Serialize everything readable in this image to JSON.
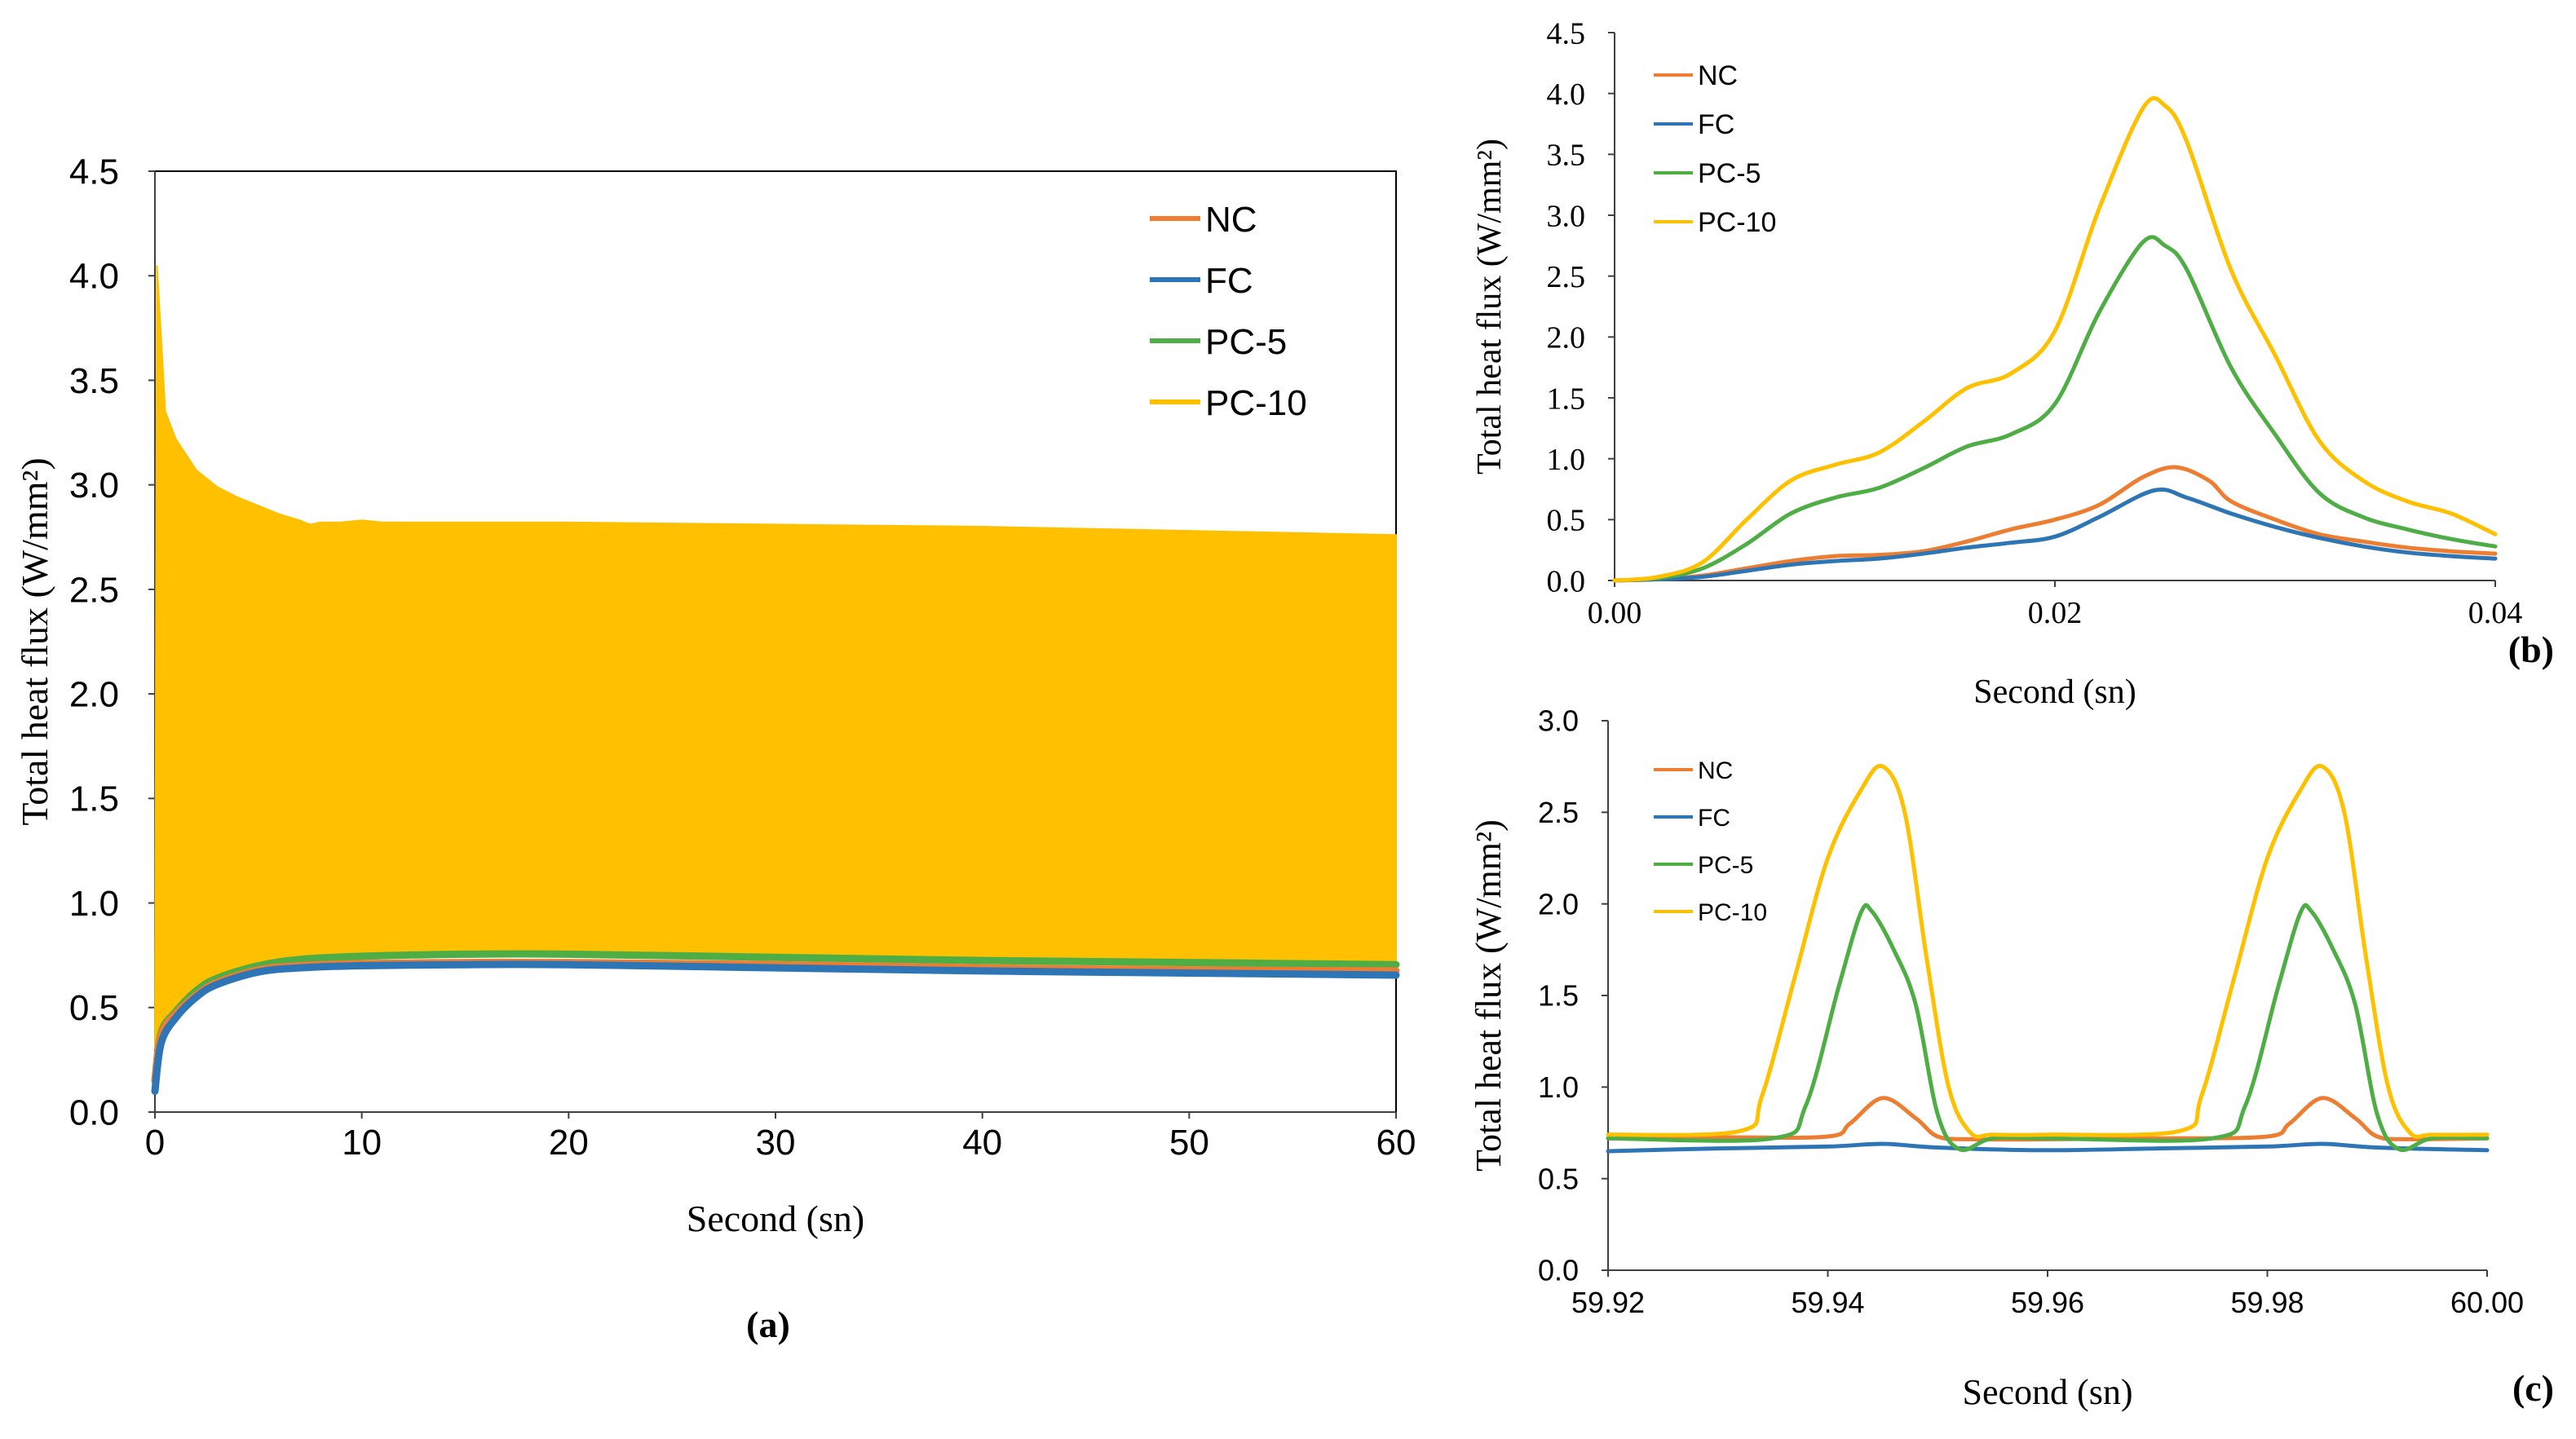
{
  "colors": {
    "NC": "#ED7D31",
    "FC": "#2E75B6",
    "PC-5": "#4EAE45",
    "PC-10": "#FFC000",
    "axis": "#404040"
  },
  "panel_labels": {
    "a": "(a)",
    "b": "(b)",
    "c": "(c)"
  },
  "chart_data": [
    {
      "id": "a",
      "type": "line",
      "title": "",
      "xlabel": "Second (sn)",
      "ylabel": "Total heat flux (W/mm²)",
      "xlim": [
        0,
        60
      ],
      "ylim": [
        0,
        4.5
      ],
      "xticks": [
        0,
        10,
        20,
        30,
        40,
        50,
        60
      ],
      "xtick_labels": [
        "0",
        "10",
        "20",
        "30",
        "40",
        "50",
        "60"
      ],
      "yticks": [
        0,
        0.5,
        1,
        1.5,
        2,
        2.5,
        3,
        3.5,
        4,
        4.5
      ],
      "ytick_labels": [
        "0.0",
        "0.5",
        "1.0",
        "1.5",
        "2.0",
        "2.5",
        "3.0",
        "3.5",
        "4.0",
        "4.5"
      ],
      "legend": [
        "NC",
        "FC",
        "PC-5",
        "PC-10"
      ],
      "legend_position": "top-right",
      "series": [
        {
          "name": "PC-10",
          "kind": "envelope",
          "upper": {
            "x": [
              0,
              0.1,
              0.5,
              1,
              2,
              3,
              4,
              5,
              6,
              7,
              7.5,
              8,
              9,
              10,
              11,
              12,
              20,
              30,
              40,
              50,
              60
            ],
            "y": [
              0.3,
              4.05,
              3.35,
              3.22,
              3.07,
              2.99,
              2.94,
              2.9,
              2.86,
              2.83,
              2.81,
              2.82,
              2.82,
              2.83,
              2.82,
              2.82,
              2.82,
              2.81,
              2.8,
              2.78,
              2.76
            ]
          },
          "lower": {
            "x": [
              0,
              0.3,
              1,
              2,
              3,
              5,
              7,
              10,
              15,
              20,
              30,
              40,
              50,
              60
            ],
            "y": [
              0.3,
              0.42,
              0.5,
              0.6,
              0.66,
              0.71,
              0.73,
              0.74,
              0.75,
              0.75,
              0.74,
              0.73,
              0.72,
              0.71
            ]
          }
        },
        {
          "name": "PC-5",
          "x": [
            0,
            0.3,
            1,
            2,
            3,
            5,
            7,
            10,
            15,
            20,
            30,
            40,
            50,
            60
          ],
          "y": [
            0.15,
            0.38,
            0.48,
            0.58,
            0.64,
            0.7,
            0.73,
            0.745,
            0.755,
            0.755,
            0.74,
            0.725,
            0.715,
            0.705
          ]
        },
        {
          "name": "NC",
          "x": [
            0,
            0.3,
            1,
            2,
            3,
            5,
            7,
            10,
            15,
            20,
            30,
            40,
            50,
            60
          ],
          "y": [
            0.15,
            0.37,
            0.47,
            0.56,
            0.62,
            0.68,
            0.7,
            0.71,
            0.715,
            0.715,
            0.705,
            0.69,
            0.68,
            0.675
          ]
        },
        {
          "name": "FC",
          "x": [
            0,
            0.3,
            1,
            2,
            3,
            5,
            7,
            10,
            15,
            20,
            30,
            40,
            50,
            60
          ],
          "y": [
            0.1,
            0.33,
            0.45,
            0.55,
            0.61,
            0.67,
            0.69,
            0.7,
            0.705,
            0.705,
            0.69,
            0.675,
            0.665,
            0.655
          ]
        }
      ]
    },
    {
      "id": "b",
      "type": "line",
      "title": "",
      "xlabel": "Second (sn)",
      "ylabel": "Total heat flux (W/mm²)",
      "xlim": [
        0,
        0.04
      ],
      "ylim": [
        0,
        4.5
      ],
      "xticks": [
        0,
        0.02,
        0.04
      ],
      "xtick_labels": [
        "0.00",
        "0.02",
        "0.04"
      ],
      "yticks": [
        0,
        0.5,
        1,
        1.5,
        2,
        2.5,
        3,
        3.5,
        4,
        4.5
      ],
      "ytick_labels": [
        "0.0",
        "0.5",
        "1.0",
        "1.5",
        "2.0",
        "2.5",
        "3.0",
        "3.5",
        "4.0",
        "4.5"
      ],
      "legend": [
        "NC",
        "FC",
        "PC-5",
        "PC-10"
      ],
      "legend_position": "top-left",
      "series": [
        {
          "name": "NC",
          "x": [
            0,
            0.002,
            0.004,
            0.006,
            0.008,
            0.01,
            0.012,
            0.014,
            0.016,
            0.018,
            0.02,
            0.022,
            0.024,
            0.0255,
            0.027,
            0.028,
            0.03,
            0.032,
            0.034,
            0.036,
            0.038,
            0.04
          ],
          "y": [
            0,
            0.01,
            0.04,
            0.1,
            0.16,
            0.2,
            0.21,
            0.24,
            0.32,
            0.42,
            0.5,
            0.62,
            0.85,
            0.93,
            0.82,
            0.65,
            0.5,
            0.38,
            0.32,
            0.27,
            0.24,
            0.22
          ]
        },
        {
          "name": "FC",
          "x": [
            0,
            0.002,
            0.004,
            0.006,
            0.008,
            0.01,
            0.012,
            0.014,
            0.016,
            0.018,
            0.02,
            0.022,
            0.0245,
            0.026,
            0.028,
            0.03,
            0.032,
            0.034,
            0.036,
            0.038,
            0.04
          ],
          "y": [
            0,
            0.01,
            0.03,
            0.08,
            0.13,
            0.16,
            0.18,
            0.22,
            0.27,
            0.31,
            0.36,
            0.52,
            0.74,
            0.68,
            0.55,
            0.44,
            0.35,
            0.28,
            0.23,
            0.2,
            0.18
          ]
        },
        {
          "name": "PC-5",
          "x": [
            0,
            0.002,
            0.004,
            0.006,
            0.008,
            0.01,
            0.012,
            0.014,
            0.016,
            0.018,
            0.02,
            0.022,
            0.024,
            0.025,
            0.026,
            0.028,
            0.03,
            0.032,
            0.034,
            0.036,
            0.038,
            0.04
          ],
          "y": [
            0,
            0.02,
            0.1,
            0.3,
            0.55,
            0.68,
            0.76,
            0.92,
            1.1,
            1.2,
            1.45,
            2.2,
            2.78,
            2.75,
            2.55,
            1.75,
            1.2,
            0.72,
            0.52,
            0.42,
            0.34,
            0.28
          ]
        },
        {
          "name": "PC-10",
          "x": [
            0,
            0.002,
            0.004,
            0.006,
            0.008,
            0.01,
            0.012,
            0.014,
            0.016,
            0.018,
            0.02,
            0.022,
            0.024,
            0.025,
            0.026,
            0.028,
            0.03,
            0.032,
            0.034,
            0.036,
            0.038,
            0.04
          ],
          "y": [
            0,
            0.03,
            0.15,
            0.5,
            0.82,
            0.95,
            1.05,
            1.3,
            1.58,
            1.7,
            2.05,
            3.05,
            3.88,
            3.9,
            3.6,
            2.55,
            1.85,
            1.15,
            0.82,
            0.65,
            0.55,
            0.38
          ]
        }
      ]
    },
    {
      "id": "c",
      "type": "line",
      "title": "",
      "xlabel": "Second (sn)",
      "ylabel": "Total heat flux (W/mm²)",
      "xlim": [
        59.92,
        60.0
      ],
      "ylim": [
        0,
        3
      ],
      "xticks": [
        59.92,
        59.94,
        59.96,
        59.98,
        60.0
      ],
      "xtick_labels": [
        "59.92",
        "59.94",
        "59.96",
        "59.98",
        "60.00"
      ],
      "yticks": [
        0,
        0.5,
        1,
        1.5,
        2,
        2.5,
        3
      ],
      "ytick_labels": [
        "0.0",
        "0.5",
        "1.0",
        "1.5",
        "2.0",
        "2.5",
        "3.0"
      ],
      "legend": [
        "NC",
        "FC",
        "PC-5",
        "PC-10"
      ],
      "legend_position": "top-left",
      "series": [
        {
          "name": "FC",
          "x": [
            59.92,
            59.93,
            59.94,
            59.945,
            59.95,
            59.96,
            59.97,
            59.98,
            59.985,
            59.99,
            60.0
          ],
          "y": [
            0.65,
            0.665,
            0.675,
            0.69,
            0.67,
            0.655,
            0.665,
            0.675,
            0.69,
            0.67,
            0.655
          ]
        },
        {
          "name": "NC",
          "x": [
            59.92,
            59.93,
            59.94,
            59.942,
            59.945,
            59.948,
            59.95,
            59.953,
            59.96,
            59.97,
            59.98,
            59.982,
            59.985,
            59.988,
            59.99,
            59.993,
            60.0
          ],
          "y": [
            0.72,
            0.725,
            0.73,
            0.8,
            0.94,
            0.83,
            0.73,
            0.715,
            0.715,
            0.72,
            0.73,
            0.8,
            0.94,
            0.83,
            0.73,
            0.715,
            0.72
          ]
        },
        {
          "name": "PC-5",
          "x": [
            59.92,
            59.935,
            59.938,
            59.941,
            59.943,
            59.944,
            59.946,
            59.948,
            59.95,
            59.952,
            59.955,
            59.96,
            59.975,
            59.978,
            59.981,
            59.983,
            59.984,
            59.986,
            59.988,
            59.99,
            59.992,
            59.995,
            60.0
          ],
          "y": [
            0.72,
            0.72,
            0.9,
            1.55,
            1.95,
            1.96,
            1.75,
            1.45,
            0.85,
            0.66,
            0.72,
            0.72,
            0.72,
            0.9,
            1.55,
            1.95,
            1.96,
            1.75,
            1.45,
            0.85,
            0.66,
            0.72,
            0.72
          ]
        },
        {
          "name": "PC-10",
          "x": [
            59.92,
            59.932,
            59.934,
            59.937,
            59.94,
            59.943,
            59.945,
            59.947,
            59.949,
            59.951,
            59.953,
            59.955,
            59.96,
            59.972,
            59.974,
            59.977,
            59.98,
            59.983,
            59.985,
            59.987,
            59.989,
            59.991,
            59.993,
            59.995,
            60.0
          ],
          "y": [
            0.74,
            0.76,
            0.95,
            1.6,
            2.25,
            2.62,
            2.75,
            2.5,
            1.7,
            1.0,
            0.75,
            0.74,
            0.74,
            0.76,
            0.95,
            1.6,
            2.25,
            2.62,
            2.75,
            2.5,
            1.7,
            1.0,
            0.75,
            0.74,
            0.74
          ]
        }
      ]
    }
  ]
}
